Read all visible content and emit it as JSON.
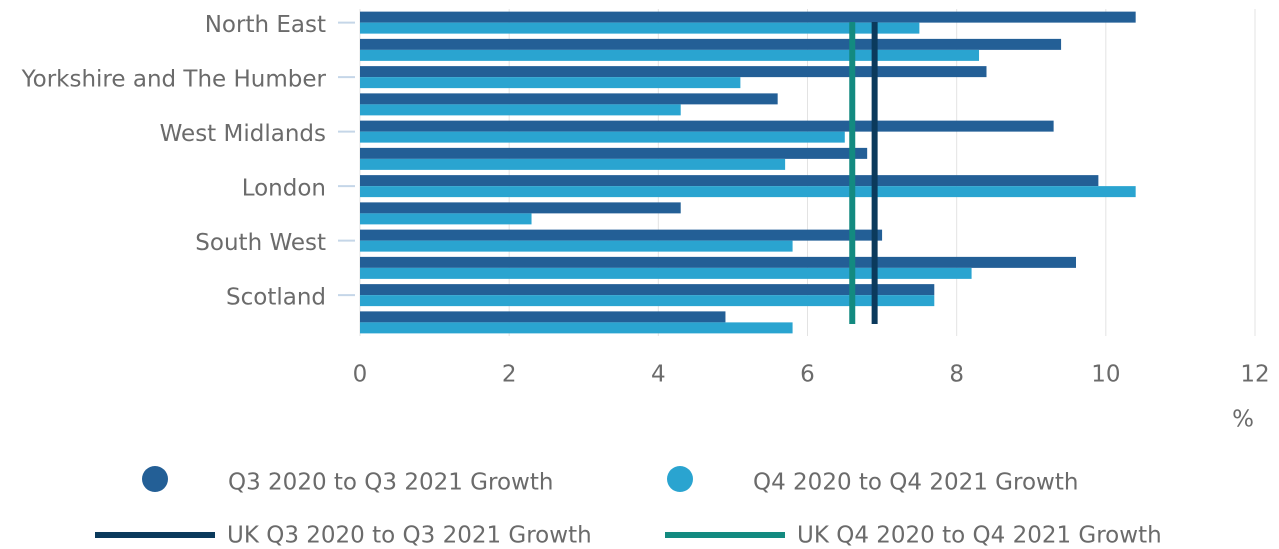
{
  "chart_data": {
    "type": "bar",
    "orientation": "horizontal",
    "categories": [
      "North East",
      null,
      "Yorkshire and The Humber",
      null,
      "West Midlands",
      null,
      "London",
      null,
      "South West",
      null,
      "Scotland",
      null
    ],
    "series": [
      {
        "name": "Q3 2020 to Q3 2021 Growth",
        "color": "#235f96",
        "values": [
          10.4,
          9.4,
          8.4,
          5.6,
          9.3,
          6.8,
          9.9,
          4.3,
          7.0,
          9.6,
          7.7,
          4.9
        ]
      },
      {
        "name": "Q4 2020 to Q4 2021 Growth",
        "color": "#2aa4d0",
        "values": [
          7.5,
          8.3,
          5.1,
          4.3,
          6.5,
          5.7,
          10.4,
          2.3,
          5.8,
          8.2,
          7.7,
          5.8
        ]
      }
    ],
    "reference_lines": [
      {
        "name": "UK Q3 2020 to Q3 2021 Growth",
        "color": "#0b3a5c",
        "value": 6.9
      },
      {
        "name": "UK Q4 2020 to Q4 2021 Growth",
        "color": "#138a80",
        "value": 6.6
      }
    ],
    "xlabel": "%",
    "xlim": [
      0,
      12
    ],
    "xticks": [
      0,
      2,
      4,
      6,
      8,
      10,
      12
    ],
    "grid": true
  }
}
